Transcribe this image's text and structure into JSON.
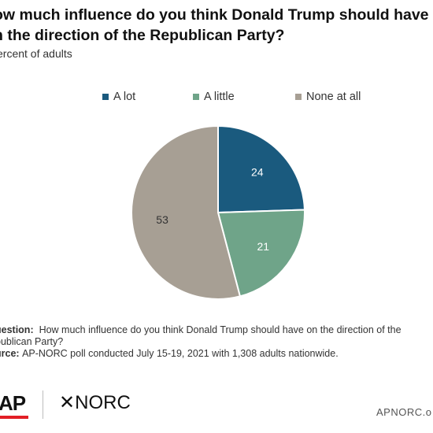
{
  "chart_data": {
    "type": "pie",
    "title": "How much influence do you think Donald Trump should have on the direction of the Republican Party?",
    "title_lines": [
      "ow much influence do you think Donald Trump should have",
      "n the direction of the Republican Party?"
    ],
    "subtitle": "ercent of adults",
    "legend_placement": "top",
    "slices": [
      {
        "label": "A lot",
        "value": 24,
        "color": "#1a5a7e"
      },
      {
        "label": "A little",
        "value": 21,
        "color": "#6fa489"
      },
      {
        "label": "None at all",
        "value": 53,
        "color": "#a79f94"
      }
    ]
  },
  "notes": {
    "question_label": "uestion:",
    "question_line1": "How much influence do you think Donald Trump should have on the direction of the",
    "question_line2": "publican Party?",
    "source_label": "urce:",
    "source_text": "AP-NORC poll conducted July 15-19, 2021 with 1,308 adults nationwide."
  },
  "footer": {
    "ap_logo": "AP",
    "norc_logo": "✕NORC",
    "url": "APNORC.o"
  }
}
